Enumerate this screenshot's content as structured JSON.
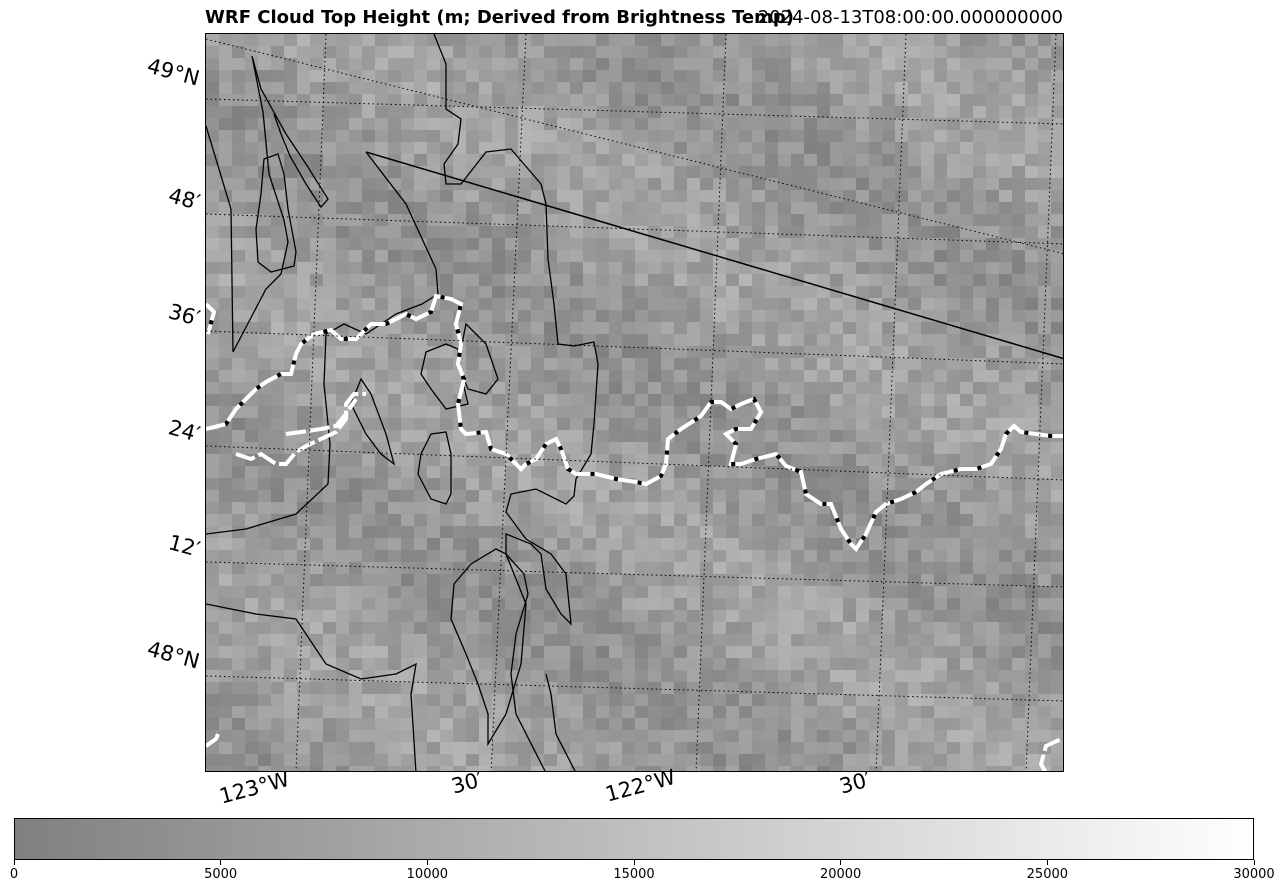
{
  "title": "WRF Cloud Top Height (m; Derived from Brightness Temp)",
  "timestamp": "2024-08-13T08:00:00.000000000",
  "lat_labels": [
    "49°N",
    "48′",
    "36′",
    "24′",
    "12′",
    "48°N"
  ],
  "lon_labels": [
    "123°W",
    "30′",
    "122°W",
    "30′"
  ],
  "colorbar": {
    "colormap": "gray",
    "min": 0,
    "max": 30000,
    "ticks": [
      "0",
      "5000",
      "10000",
      "15000",
      "20000",
      "25000",
      "30000"
    ]
  },
  "colors": {
    "coastline": "#000000",
    "border": "#000000",
    "county_outline": "#ffffff",
    "gridline": "#000000"
  }
}
